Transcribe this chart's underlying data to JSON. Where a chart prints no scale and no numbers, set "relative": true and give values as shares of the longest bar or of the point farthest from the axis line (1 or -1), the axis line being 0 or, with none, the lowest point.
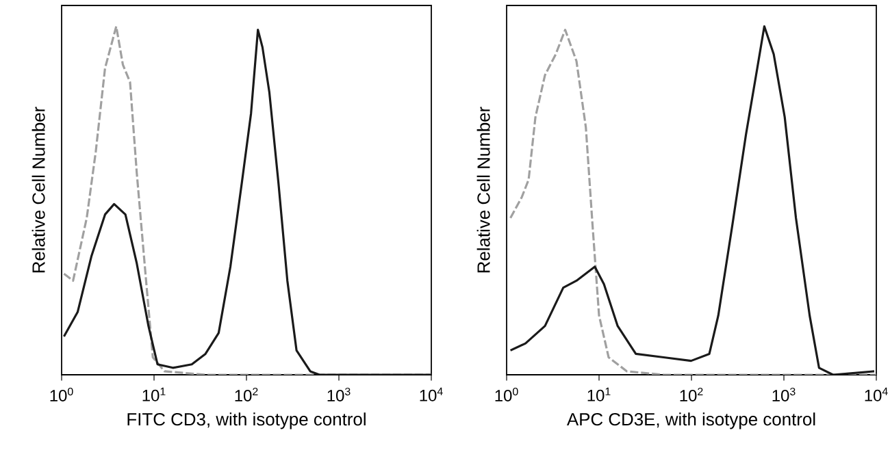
{
  "chart_data": [
    {
      "type": "line",
      "relative": true,
      "log": "x",
      "xlabel": "FITC CD3, with isotype control",
      "ylabel": "Relative Cell Number",
      "xlim": [
        1,
        10000
      ],
      "xticks": [
        {
          "value": 1,
          "label": "10$^{0}$"
        },
        {
          "value": 10,
          "label": "10$^{1}$"
        },
        {
          "value": 100,
          "label": "10$^{2}$"
        },
        {
          "value": 1000,
          "label": "10$^{3}$"
        },
        {
          "value": 10000,
          "label": "10$^{4}$"
        }
      ],
      "marker": "none",
      "series": [
        {
          "color": "#a0a0a0",
          "line_style": "dashed",
          "x": [
            1.06,
            1.33,
            1.87,
            2.34,
            2.95,
            3.9,
            4.6,
            5.5,
            6.5,
            8.2,
            9.7,
            13,
            36,
            10000
          ],
          "values": [
            0.29,
            0.27,
            0.45,
            0.64,
            0.88,
            1.0,
            0.89,
            0.84,
            0.58,
            0.27,
            0.05,
            0.01,
            0,
            0
          ]
        },
        {
          "color": "#1a1a1a",
          "line_style": "solid",
          "x": [
            1.06,
            1.49,
            2.1,
            2.95,
            3.7,
            4.9,
            6.5,
            8.7,
            10.9,
            16,
            25.6,
            36,
            50,
            67,
            89,
            112,
            133,
            149,
            177,
            222,
            277,
            348,
            490,
            617,
            10000
          ],
          "values": [
            0.11,
            0.18,
            0.34,
            0.46,
            0.49,
            0.46,
            0.32,
            0.14,
            0.03,
            0.02,
            0.03,
            0.06,
            0.12,
            0.31,
            0.55,
            0.75,
            0.99,
            0.94,
            0.81,
            0.55,
            0.27,
            0.07,
            0.01,
            0,
            0
          ]
        }
      ]
    },
    {
      "type": "line",
      "relative": true,
      "log": "x",
      "xlabel": "APC CD3E, with isotype control",
      "ylabel": "Relative Cell Number",
      "xlim": [
        1,
        10000
      ],
      "xticks": [
        {
          "value": 1,
          "label": "10$^{0}$"
        },
        {
          "value": 10,
          "label": "10$^{1}$"
        },
        {
          "value": 100,
          "label": "10$^{2}$"
        },
        {
          "value": 1000,
          "label": "10$^{3}$"
        },
        {
          "value": 10000,
          "label": "10$^{4}$"
        }
      ],
      "marker": "none",
      "series": [
        {
          "color": "#a0a0a0",
          "line_style": "dashed",
          "x": [
            1.1,
            1.46,
            1.73,
            2.05,
            2.6,
            3.4,
            4.3,
            5.7,
            7.2,
            8.5,
            10,
            12.7,
            20,
            50,
            10000
          ],
          "values": [
            0.45,
            0.51,
            0.56,
            0.74,
            0.86,
            0.92,
            0.99,
            0.9,
            0.71,
            0.43,
            0.17,
            0.05,
            0.01,
            0,
            0
          ]
        },
        {
          "color": "#1a1a1a",
          "line_style": "solid",
          "x": [
            1.1,
            1.6,
            2.6,
            4.1,
            5.7,
            9.0,
            11.3,
            15.9,
            25,
            50,
            99,
            156,
            195,
            277,
            389,
            515,
            614,
            776,
            1020,
            1350,
            1900,
            2400,
            3400,
            9500
          ],
          "values": [
            0.07,
            0.09,
            0.14,
            0.25,
            0.27,
            0.31,
            0.26,
            0.14,
            0.06,
            0.05,
            0.04,
            0.06,
            0.17,
            0.43,
            0.69,
            0.88,
            1.0,
            0.92,
            0.74,
            0.45,
            0.17,
            0.02,
            0,
            0.01
          ]
        }
      ]
    }
  ]
}
